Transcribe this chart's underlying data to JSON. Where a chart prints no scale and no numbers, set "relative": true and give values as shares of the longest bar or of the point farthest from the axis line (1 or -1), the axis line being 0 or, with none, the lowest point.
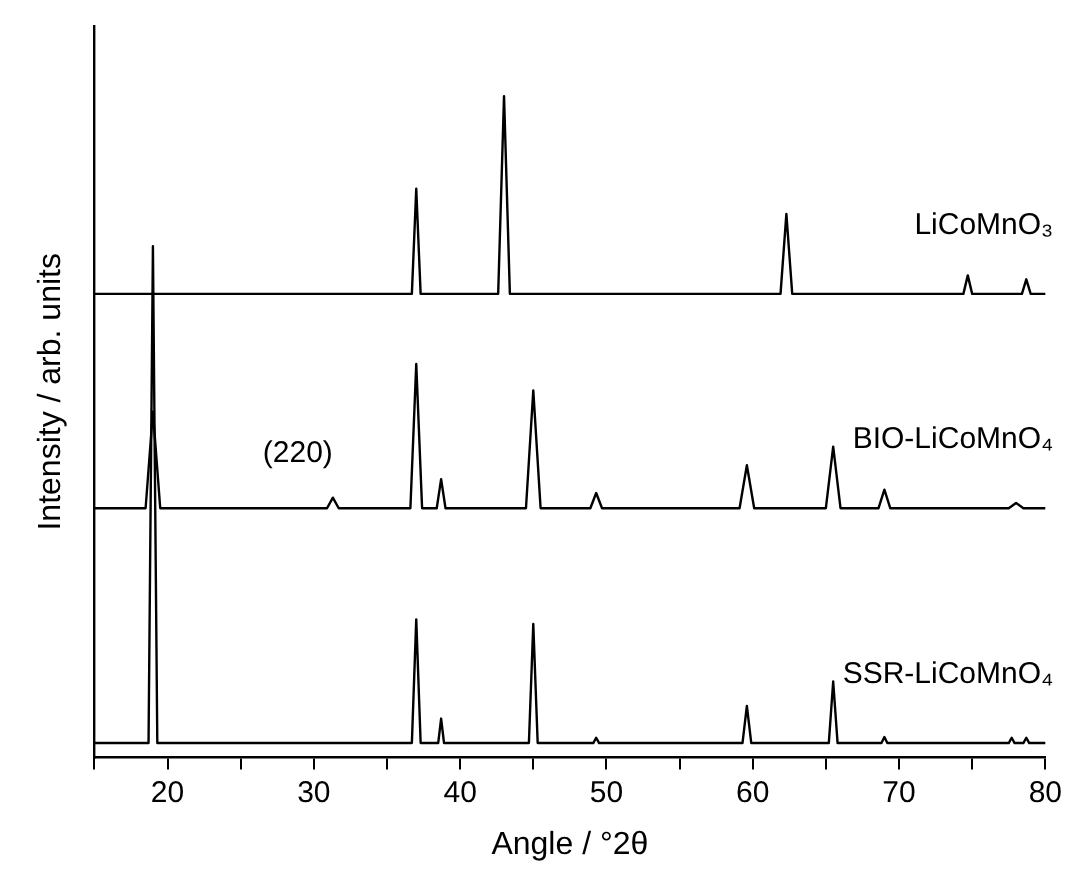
{
  "chart_data": {
    "type": "line",
    "relative": true,
    "xlabel": "Angle / °2θ",
    "ylabel": "Intensity / arb. units",
    "xlim": [
      15,
      80
    ],
    "xticks": [
      {
        "value": 15,
        "label": null
      },
      20,
      {
        "value": 25,
        "label": null
      },
      30,
      {
        "value": 35,
        "label": null
      },
      40,
      {
        "value": 45,
        "label": null
      },
      50,
      {
        "value": 55,
        "label": null
      },
      60,
      {
        "value": 65,
        "label": null
      },
      70,
      {
        "value": 75,
        "label": null
      },
      80
    ],
    "grid": false,
    "legend": false,
    "marker": "none",
    "line_style": "solid",
    "annotations": [
      {
        "text": "(220)",
        "x": 31.3,
        "y": 0.393
      }
    ],
    "series": [
      {
        "name": "LiCoMnO₃",
        "color": "#000000",
        "x": [
          15,
          36.7,
          37,
          37.3,
          42.6,
          43,
          43.4,
          61.9,
          62.3,
          62.7,
          74.4,
          74.7,
          75,
          78.4,
          78.7,
          79,
          80
        ],
        "values": [
          0.701,
          0.701,
          0.86,
          0.701,
          0.701,
          1.0,
          0.701,
          0.701,
          0.822,
          0.701,
          0.701,
          0.729,
          0.701,
          0.701,
          0.723,
          0.701,
          0.701
        ]
      },
      {
        "name": "BIO-LiCoMnO₄",
        "color": "#000000",
        "x": [
          15,
          18.5,
          19,
          19.5,
          30.9,
          31.3,
          31.7,
          36.6,
          37,
          37.4,
          38.4,
          38.7,
          39,
          44.5,
          45,
          45.5,
          48.9,
          49.3,
          49.7,
          59.1,
          59.6,
          60.1,
          65,
          65.5,
          66,
          68.6,
          69,
          69.4,
          77.5,
          78,
          78.5,
          80
        ],
        "values": [
          0.377,
          0.377,
          0.523,
          0.377,
          0.377,
          0.393,
          0.377,
          0.377,
          0.595,
          0.377,
          0.377,
          0.421,
          0.377,
          0.377,
          0.555,
          0.377,
          0.377,
          0.4,
          0.377,
          0.377,
          0.442,
          0.377,
          0.377,
          0.47,
          0.377,
          0.377,
          0.405,
          0.377,
          0.377,
          0.385,
          0.377,
          0.377
        ]
      },
      {
        "name": "SSR-LiCoMnO₄",
        "color": "#000000",
        "x": [
          15,
          18.7,
          19,
          19.3,
          36.7,
          37,
          37.3,
          38.5,
          38.7,
          38.9,
          44.7,
          45,
          45.3,
          49.1,
          49.3,
          49.5,
          59.3,
          59.6,
          59.9,
          65.2,
          65.5,
          65.8,
          68.8,
          69,
          69.2,
          77.5,
          77.7,
          77.9,
          78.5,
          78.7,
          78.9,
          80
        ],
        "values": [
          0.022,
          0.022,
          0.773,
          0.022,
          0.022,
          0.209,
          0.022,
          0.022,
          0.059,
          0.022,
          0.022,
          0.202,
          0.022,
          0.022,
          0.03,
          0.022,
          0.022,
          0.078,
          0.022,
          0.022,
          0.115,
          0.022,
          0.022,
          0.031,
          0.022,
          0.022,
          0.03,
          0.022,
          0.022,
          0.03,
          0.022,
          0.022
        ]
      }
    ]
  }
}
